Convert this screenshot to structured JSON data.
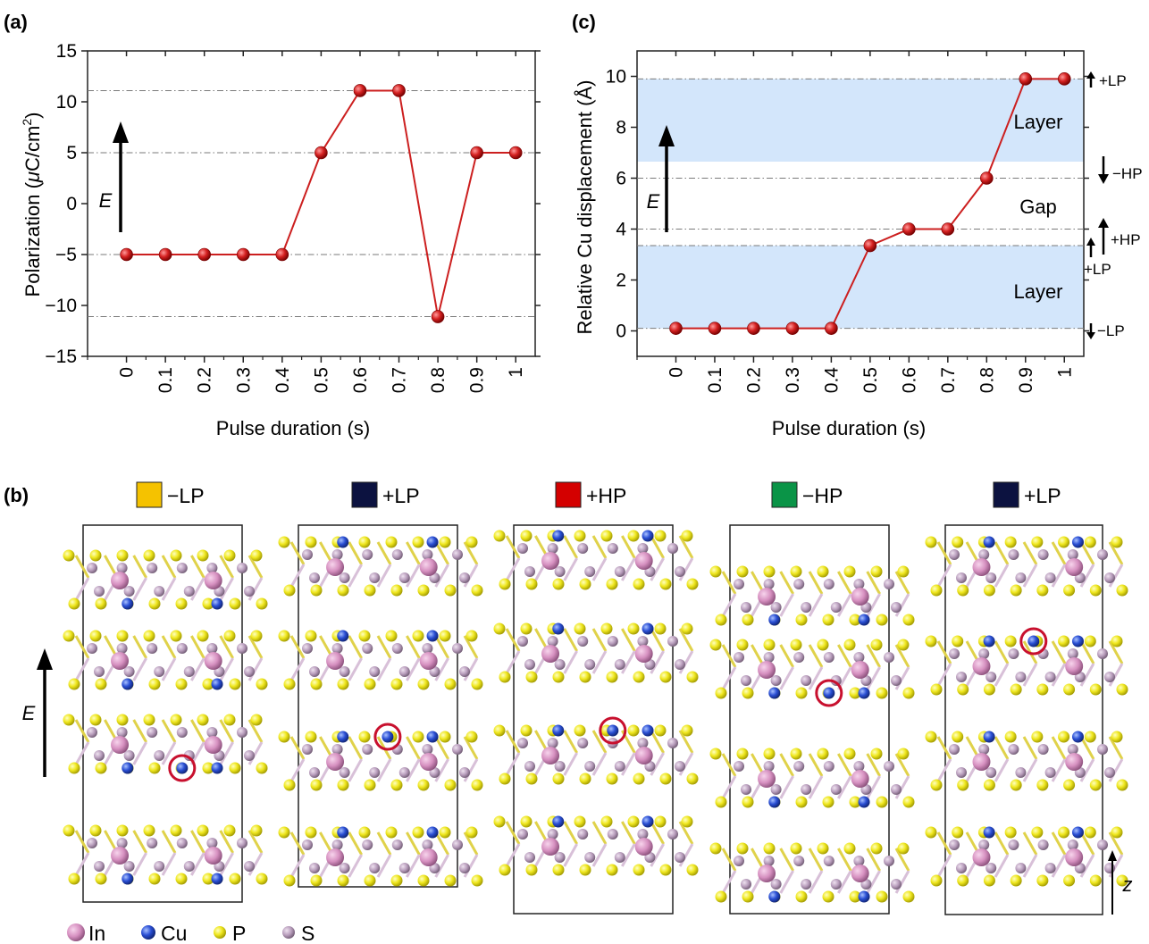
{
  "panel_labels": {
    "a": "(a)",
    "b": "(b)",
    "c": "(c)"
  },
  "chart_data": [
    {
      "type": "line",
      "title": "",
      "xlabel": "Pulse duration (s)",
      "ylabel_main": "Polarization (",
      "ylabel_mu": "μ",
      "ylabel_unit": "C/cm",
      "ylabel_sup": "2",
      "ylabel_close": ")",
      "x": [
        0,
        0.1,
        0.2,
        0.3,
        0.4,
        0.5,
        0.6,
        0.7,
        0.8,
        0.9,
        1
      ],
      "x_tick_labels": [
        "0",
        "0.1",
        "0.2",
        "0.3",
        "0.4",
        "0.5",
        "0.6",
        "0.7",
        "0.8",
        "0.9",
        "1"
      ],
      "y": [
        -5,
        -5,
        -5,
        -5,
        -5,
        5,
        11.1,
        11.1,
        -11.1,
        5,
        5
      ],
      "ylim": [
        -15,
        15
      ],
      "xlim": [
        -0.1,
        1.05
      ],
      "y_ticks": [
        -15,
        -10,
        -5,
        0,
        5,
        10,
        15
      ],
      "y_tick_labels": [
        "−15",
        "−10",
        "−5",
        "0",
        "5",
        "10",
        "15"
      ],
      "reference_lines": [
        11.1,
        5,
        -5,
        -11.1
      ],
      "field_label": "E",
      "series_color": "#cc1f1f"
    },
    {
      "type": "line",
      "title": "",
      "xlabel": "Pulse duration (s)",
      "ylabel": "Relative Cu displacement (Å)",
      "x": [
        0,
        0.1,
        0.2,
        0.3,
        0.4,
        0.5,
        0.6,
        0.7,
        0.8,
        0.9,
        1
      ],
      "x_tick_labels": [
        "0",
        "0.1",
        "0.2",
        "0.3",
        "0.4",
        "0.5",
        "0.6",
        "0.7",
        "0.8",
        "0.9",
        "1"
      ],
      "y": [
        0.1,
        0.1,
        0.1,
        0.1,
        0.1,
        3.35,
        4.0,
        4.0,
        6.0,
        9.9,
        9.9
      ],
      "ylim": [
        -1,
        11
      ],
      "xlim": [
        -0.1,
        1.05
      ],
      "y_ticks": [
        0,
        2,
        4,
        6,
        8,
        10
      ],
      "y_tick_labels": [
        "0",
        "2",
        "4",
        "6",
        "8",
        "10"
      ],
      "reference_lines": [
        9.9,
        6.0,
        4.0,
        3.35,
        0.1
      ],
      "shaded_regions": [
        {
          "from": 6.65,
          "to": 9.9,
          "label": "Layer",
          "color": "#d3e6fb"
        },
        {
          "from": 0.1,
          "to": 3.35,
          "label": "Layer",
          "color": "#d3e6fb"
        }
      ],
      "gap_label": "Gap",
      "state_labels": [
        {
          "text": "+LP",
          "at": 9.9
        },
        {
          "text": "−HP",
          "at": 6.0
        },
        {
          "text": "+HP",
          "at": 4.0
        },
        {
          "text": "+LP",
          "at": 3.35
        },
        {
          "text": "−LP",
          "at": 0.1
        }
      ],
      "field_label": "E",
      "series_color": "#cc1f1f"
    }
  ],
  "structure_panel": {
    "states": [
      {
        "label": "−LP",
        "color": "#f5c200"
      },
      {
        "label": "+LP",
        "color": "#0c1240"
      },
      {
        "label": "+HP",
        "color": "#d40000"
      },
      {
        "label": "−HP",
        "color": "#0a9447"
      },
      {
        "label": "+LP",
        "color": "#0c1240"
      }
    ],
    "field_label": "E",
    "axis_label": "z",
    "legend": [
      {
        "label": "In",
        "color": "#d88fbf"
      },
      {
        "label": "Cu",
        "color": "#2a4fd4"
      },
      {
        "label": "P",
        "color": "#efe71e"
      },
      {
        "label": "S",
        "color": "#b79cbb"
      }
    ]
  }
}
